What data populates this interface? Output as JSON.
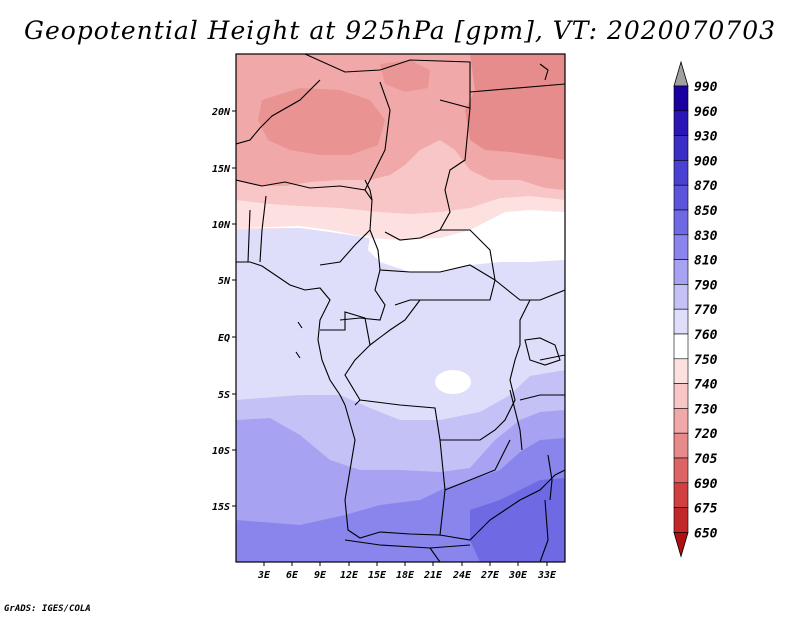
{
  "title": "Geopotential Height at 925hPa [gpm], VT: 2020070703",
  "credit": "GrADS: IGES/COLA",
  "map": {
    "lon_range": [
      0,
      35
    ],
    "lat_range": [
      -20,
      25
    ],
    "lat_labels": [
      "20N",
      "15N",
      "10N",
      "5N",
      "EQ",
      "5S",
      "10S",
      "15S"
    ],
    "lon_labels": [
      "3E",
      "6E",
      "9E",
      "12E",
      "15E",
      "18E",
      "21E",
      "24E",
      "27E",
      "30E",
      "33E"
    ]
  },
  "colorbar": {
    "labels": [
      "990",
      "960",
      "930",
      "900",
      "870",
      "850",
      "830",
      "810",
      "790",
      "770",
      "760",
      "750",
      "740",
      "730",
      "720",
      "705",
      "690",
      "675",
      "650"
    ],
    "colors": [
      "#1a009e",
      "#2a16b4",
      "#3a2ec6",
      "#4a40d2",
      "#5c55dc",
      "#6f6ae4",
      "#8a85ec",
      "#a7a3f2",
      "#c3c1f6",
      "#dedefa",
      "#ffffff",
      "#fde0e0",
      "#f8c6c6",
      "#f0a8a8",
      "#e68a8a",
      "#dc6464",
      "#d04040",
      "#c22828",
      "#b01010"
    ],
    "top_arrow_color": "#a0a0a0"
  }
}
